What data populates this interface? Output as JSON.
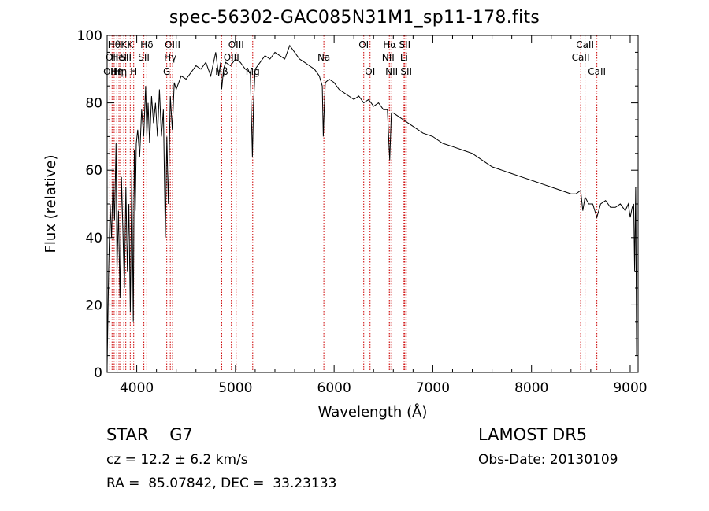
{
  "info": {
    "object_class": "STAR",
    "subclass": "G7",
    "survey": "LAMOST DR5",
    "cz": "cz = 12.2 ± 6.2 km/s",
    "obs_date": "Obs-Date: 20130109",
    "ra_label": "RA = ",
    "ra_value": " 85.07842,",
    "dec_label": " DEC = ",
    "dec_value": " 33.23133"
  },
  "chart_data": {
    "type": "line",
    "title": "spec-56302-GAC085N31M1_sp11-178.fits",
    "xlabel": "Wavelength (Å)",
    "ylabel": "Flux (relative)",
    "xlim": [
      3700,
      9080
    ],
    "ylim": [
      0,
      100
    ],
    "xticks": [
      4000,
      5000,
      6000,
      7000,
      8000,
      9000
    ],
    "yticks": [
      0,
      20,
      40,
      60,
      80,
      100
    ],
    "line_color": "#000000",
    "marker_color": "#cc0000",
    "series": [
      {
        "x": [
          3700,
          3715,
          3730,
          3745,
          3760,
          3775,
          3790,
          3800,
          3815,
          3830,
          3845,
          3860,
          3875,
          3890,
          3905,
          3920,
          3935,
          3950,
          3965,
          3975,
          3985,
          3995,
          4010,
          4030,
          4050,
          4070,
          4090,
          4102,
          4115,
          4130,
          4150,
          4170,
          4190,
          4210,
          4230,
          4250,
          4270,
          4290,
          4305,
          4320,
          4340,
          4360,
          4380,
          4400,
          4450,
          4500,
          4550,
          4600,
          4650,
          4700,
          4750,
          4800,
          4830,
          4850,
          4861,
          4880,
          4900,
          4950,
          5000,
          5050,
          5100,
          5150,
          5167,
          5172,
          5184,
          5200,
          5250,
          5300,
          5350,
          5400,
          5450,
          5500,
          5550,
          5600,
          5650,
          5700,
          5750,
          5800,
          5850,
          5880,
          5890,
          5896,
          5910,
          5950,
          6000,
          6050,
          6100,
          6150,
          6200,
          6250,
          6300,
          6350,
          6400,
          6450,
          6500,
          6540,
          6563,
          6580,
          6600,
          6650,
          6700,
          6750,
          6800,
          6900,
          7000,
          7100,
          7200,
          7300,
          7400,
          7500,
          7600,
          7700,
          7800,
          7900,
          8000,
          8100,
          8200,
          8300,
          8400,
          8450,
          8498,
          8520,
          8542,
          8580,
          8620,
          8662,
          8700,
          8750,
          8800,
          8850,
          8900,
          8950,
          8980,
          9000,
          9020,
          9035,
          9045,
          9055,
          9065
        ],
        "values": [
          2,
          30,
          50,
          40,
          58,
          45,
          68,
          30,
          48,
          22,
          58,
          42,
          25,
          55,
          30,
          50,
          18,
          60,
          15,
          66,
          48,
          68,
          72,
          64,
          78,
          70,
          85,
          70,
          80,
          68,
          82,
          74,
          80,
          70,
          84,
          70,
          78,
          40,
          70,
          50,
          82,
          72,
          86,
          84,
          88,
          87,
          89,
          91,
          90,
          92,
          88,
          95,
          88,
          92,
          84,
          90,
          92,
          91,
          93,
          92,
          90,
          89,
          70,
          64,
          80,
          90,
          92,
          94,
          93,
          95,
          94,
          93,
          97,
          95,
          93,
          92,
          91,
          90,
          88,
          85,
          70,
          75,
          86,
          87,
          86,
          84,
          83,
          82,
          81,
          82,
          80,
          81,
          79,
          80,
          78,
          78,
          63,
          77,
          77,
          76,
          75,
          74,
          73,
          71,
          70,
          68,
          67,
          66,
          65,
          63,
          61,
          60,
          59,
          58,
          57,
          56,
          55,
          54,
          53,
          53,
          54,
          48,
          52,
          50,
          50,
          46,
          50,
          51,
          49,
          49,
          50,
          48,
          50,
          46,
          49,
          50,
          30,
          55,
          5
        ]
      }
    ],
    "line_markers": [
      {
        "wl": 3727,
        "labels": [
          "OII"
        ],
        "rows": [
          2
        ]
      },
      {
        "wl": 3750,
        "labels": [
          "OII"
        ],
        "rows": [
          1
        ]
      },
      {
        "wl": 3771,
        "labels": [
          "Hθ"
        ],
        "rows": [
          0
        ]
      },
      {
        "wl": 3798,
        "labels": [
          "Hη"
        ],
        "rows": [
          2
        ]
      },
      {
        "wl": 3820,
        "labels": [
          "HeI"
        ],
        "rows": [
          1
        ]
      },
      {
        "wl": 3835,
        "labels": [
          "Hη"
        ],
        "rows": [
          2
        ]
      },
      {
        "wl": 3869,
        "labels": [
          "K"
        ],
        "rows": [
          0
        ]
      },
      {
        "wl": 3889,
        "labels": [
          "SII"
        ],
        "rows": [
          1
        ]
      },
      {
        "wl": 3934,
        "labels": [
          "K"
        ],
        "rows": [
          0
        ]
      },
      {
        "wl": 3969,
        "labels": [
          "H"
        ],
        "rows": [
          2
        ]
      },
      {
        "wl": 4072,
        "labels": [
          "SII"
        ],
        "rows": [
          1
        ]
      },
      {
        "wl": 4102,
        "labels": [
          "Hδ"
        ],
        "rows": [
          0
        ]
      },
      {
        "wl": 4304,
        "labels": [
          "G"
        ],
        "rows": [
          2
        ]
      },
      {
        "wl": 4340,
        "labels": [
          "Hγ"
        ],
        "rows": [
          1
        ]
      },
      {
        "wl": 4363,
        "labels": [
          "OIII"
        ],
        "rows": [
          0
        ]
      },
      {
        "wl": 4861,
        "labels": [
          "Hβ"
        ],
        "rows": [
          2
        ]
      },
      {
        "wl": 4959,
        "labels": [
          "OIII"
        ],
        "rows": [
          1
        ]
      },
      {
        "wl": 5007,
        "labels": [
          "OIII"
        ],
        "rows": [
          0
        ]
      },
      {
        "wl": 5175,
        "labels": [
          "Mg"
        ],
        "rows": [
          2
        ]
      },
      {
        "wl": 5896,
        "labels": [
          "Na"
        ],
        "rows": [
          1
        ]
      },
      {
        "wl": 6300,
        "labels": [
          "OI"
        ],
        "rows": [
          0
        ]
      },
      {
        "wl": 6364,
        "labels": [
          "OI"
        ],
        "rows": [
          2
        ]
      },
      {
        "wl": 6548,
        "labels": [
          "NII"
        ],
        "rows": [
          1
        ]
      },
      {
        "wl": 6563,
        "labels": [
          "Hα"
        ],
        "rows": [
          0
        ]
      },
      {
        "wl": 6583,
        "labels": [
          "NII"
        ],
        "rows": [
          2
        ]
      },
      {
        "wl": 6708,
        "labels": [
          "Li"
        ],
        "rows": [
          1
        ]
      },
      {
        "wl": 6716,
        "labels": [
          "SII"
        ],
        "rows": [
          0
        ]
      },
      {
        "wl": 6731,
        "labels": [
          "SII"
        ],
        "rows": [
          2
        ]
      },
      {
        "wl": 8498,
        "labels": [
          "CaII"
        ],
        "rows": [
          1
        ]
      },
      {
        "wl": 8542,
        "labels": [
          "CaII"
        ],
        "rows": [
          0
        ]
      },
      {
        "wl": 8662,
        "labels": [
          "CaII"
        ],
        "rows": [
          2
        ]
      }
    ]
  }
}
